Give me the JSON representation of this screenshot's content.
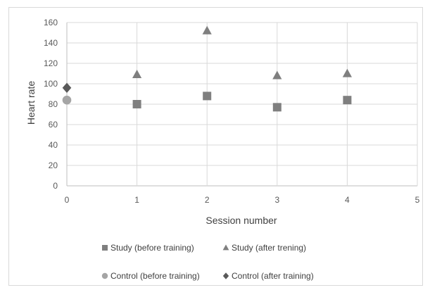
{
  "chart_data": {
    "type": "scatter",
    "title": "",
    "xlabel": "Session number",
    "ylabel": "Heart rate",
    "xlim": [
      0,
      5
    ],
    "ylim": [
      0,
      160
    ],
    "x_ticks": [
      "0",
      "1",
      "2",
      "3",
      "4",
      "5"
    ],
    "y_ticks": [
      "0",
      "20",
      "40",
      "60",
      "80",
      "100",
      "120",
      "140",
      "160"
    ],
    "grid": true,
    "legend_position": "bottom",
    "series": [
      {
        "name": "Study (before training)",
        "marker": "square",
        "color": "#7f7f7f",
        "points": [
          {
            "x": 1,
            "y": 80
          },
          {
            "x": 2,
            "y": 88
          },
          {
            "x": 3,
            "y": 77
          },
          {
            "x": 4,
            "y": 84
          }
        ]
      },
      {
        "name": "Study (after trening)",
        "marker": "triangle",
        "color": "#7f7f7f",
        "points": [
          {
            "x": 1,
            "y": 109
          },
          {
            "x": 2,
            "y": 152
          },
          {
            "x": 3,
            "y": 108
          },
          {
            "x": 4,
            "y": 110
          }
        ]
      },
      {
        "name": "Control (before training)",
        "marker": "circle",
        "color": "#a5a5a5",
        "points": [
          {
            "x": 0,
            "y": 84
          }
        ]
      },
      {
        "name": "Control (after training)",
        "marker": "diamond",
        "color": "#595959",
        "points": [
          {
            "x": 0,
            "y": 96
          }
        ]
      }
    ]
  }
}
